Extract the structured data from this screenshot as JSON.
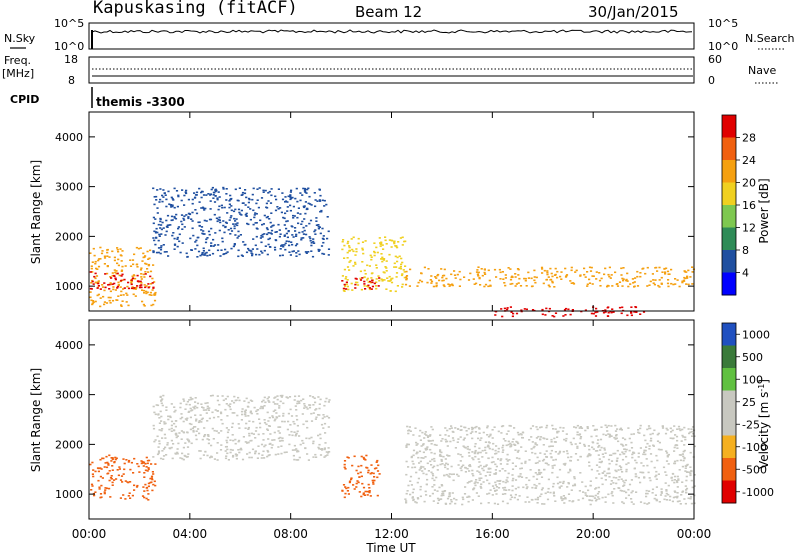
{
  "header": {
    "station": "Kapuskasing (fitACF)",
    "beam": "Beam 12",
    "date": "30/Jan/2015"
  },
  "noise_panel": {
    "left_label": "N.Sky",
    "left_ticks": [
      "10^5",
      "10^0"
    ],
    "right_label": "N.Search",
    "right_ticks": [
      "10^5",
      "10^0"
    ]
  },
  "freq_panel": {
    "left_label_1": "Freq.",
    "left_label_2": "[MHz]",
    "left_ticks": [
      "18",
      "8"
    ],
    "right_label": "Nave",
    "right_ticks": [
      "60",
      "0"
    ]
  },
  "cpid": {
    "label": "CPID",
    "value": "themis -3300"
  },
  "colors": {
    "power_scale": [
      "#0000ff",
      "#1f4fa0",
      "#2e8b57",
      "#7ec850",
      "#f0d020",
      "#f5a010",
      "#f06010",
      "#e00000"
    ],
    "velocity_scale": [
      "#e00000",
      "#f06010",
      "#f5b020",
      "#c8c8c0",
      "#c8c8c0",
      "#60c040",
      "#3a7a3a",
      "#2050c0"
    ],
    "ground_scatter": "#c8c8c0"
  },
  "chart_data": [
    {
      "type": "heatmap",
      "panel": "power",
      "xlabel": "Time UT",
      "ylabel": "Slant Range [km]",
      "x_ticks": [
        "00:00",
        "04:00",
        "08:00",
        "12:00",
        "16:00",
        "20:00",
        "00:00"
      ],
      "xlim_hours": [
        0,
        24
      ],
      "y_ticks": [
        1000,
        2000,
        3000,
        4000
      ],
      "ylim": [
        500,
        4500
      ],
      "colorbar_label": "Power [dB]",
      "colorbar_ticks": [
        4,
        8,
        12,
        16,
        20,
        24,
        28
      ],
      "features": [
        {
          "t": [
            0.0,
            2.6
          ],
          "r": [
            600,
            1800
          ],
          "value": 20
        },
        {
          "t": [
            0.0,
            2.6
          ],
          "r": [
            950,
            1300
          ],
          "value": 28
        },
        {
          "t": [
            2.5,
            9.5
          ],
          "r": [
            1600,
            3000
          ],
          "value": 4
        },
        {
          "t": [
            10.0,
            12.5
          ],
          "r": [
            900,
            2000
          ],
          "value": 16
        },
        {
          "t": [
            10.0,
            11.5
          ],
          "r": [
            950,
            1200
          ],
          "value": 28
        },
        {
          "t": [
            12.5,
            24.0
          ],
          "r": [
            1000,
            1400
          ],
          "value": 20
        },
        {
          "t": [
            16.0,
            22.0
          ],
          "r": [
            400,
            600
          ],
          "value": 28
        }
      ]
    },
    {
      "type": "heatmap",
      "panel": "velocity",
      "xlabel": "Time UT",
      "ylabel": "Slant Range [km]",
      "x_ticks": [
        "00:00",
        "04:00",
        "08:00",
        "12:00",
        "16:00",
        "20:00",
        "00:00"
      ],
      "xlim_hours": [
        0,
        24
      ],
      "y_ticks": [
        1000,
        2000,
        3000,
        4000
      ],
      "ylim": [
        500,
        4500
      ],
      "colorbar_label": "Velocity [m s^-1]",
      "colorbar_ticks": [
        1000,
        500,
        100,
        25,
        -25,
        -100,
        -500,
        -1000
      ],
      "features": [
        {
          "t": [
            0.0,
            2.6
          ],
          "r": [
            900,
            1800
          ],
          "value": -100
        },
        {
          "t": [
            2.5,
            9.5
          ],
          "r": [
            1700,
            3000
          ],
          "value": 0
        },
        {
          "t": [
            10.0,
            11.5
          ],
          "r": [
            950,
            1800
          ],
          "value": -100
        },
        {
          "t": [
            12.5,
            24.0
          ],
          "r": [
            800,
            2400
          ],
          "value": 0
        }
      ]
    }
  ]
}
